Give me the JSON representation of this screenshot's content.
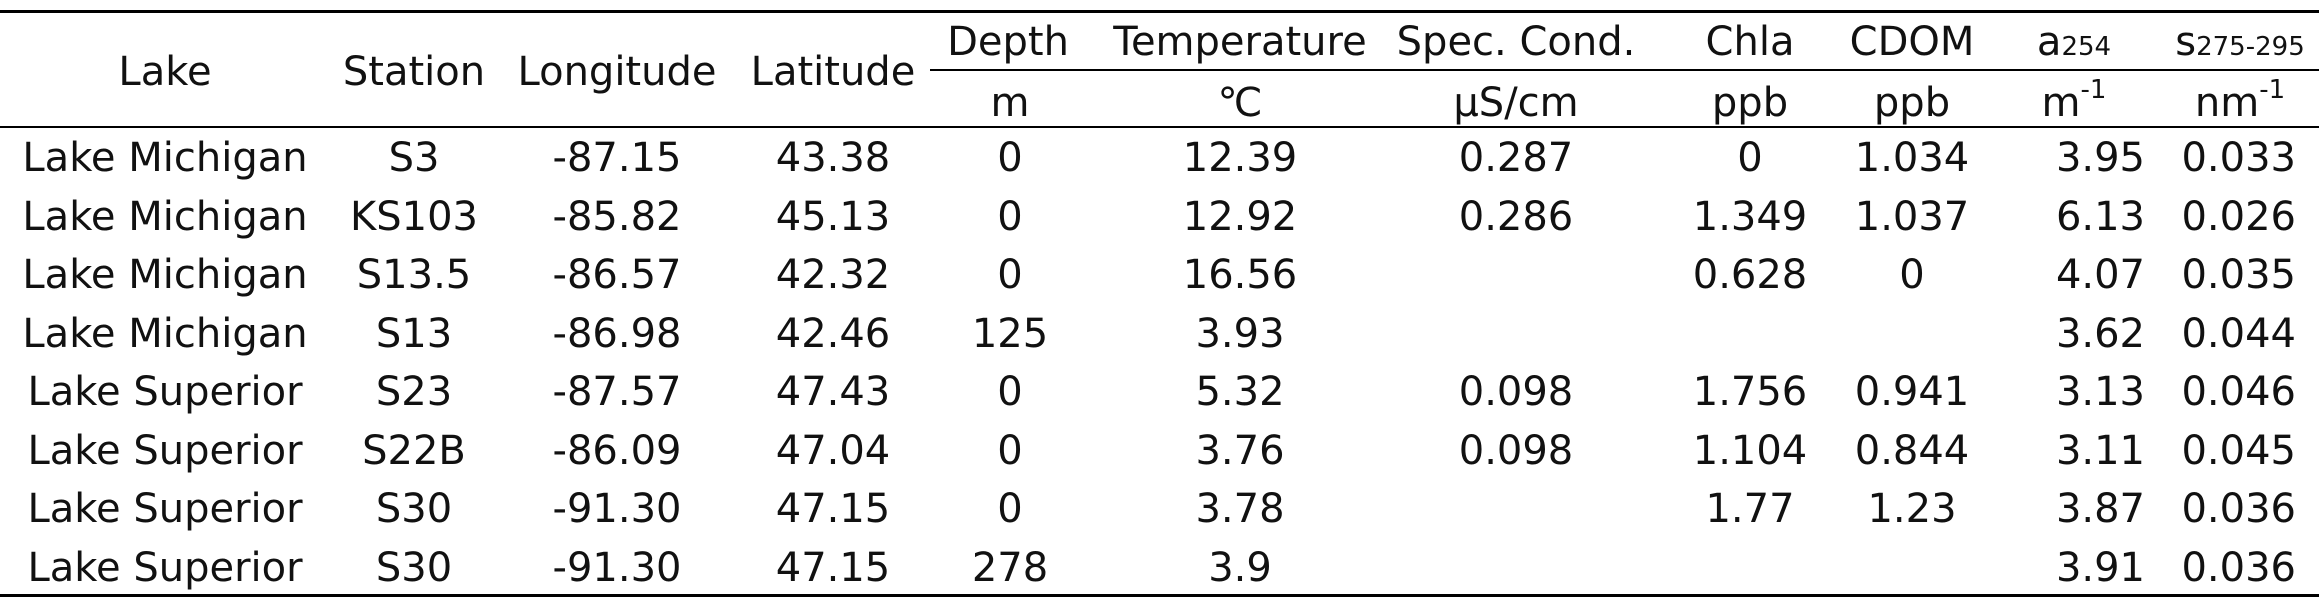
{
  "columns": [
    {
      "key": "lake",
      "label": "Lake",
      "unit": ""
    },
    {
      "key": "station",
      "label": "Station",
      "unit": ""
    },
    {
      "key": "longitude",
      "label": "Longitude",
      "unit": ""
    },
    {
      "key": "latitude",
      "label": "Latitude",
      "unit": ""
    },
    {
      "key": "depth",
      "label": "Depth",
      "unit": "m"
    },
    {
      "key": "temperature",
      "label": "Temperature",
      "unit": "℃"
    },
    {
      "key": "spec_cond",
      "label": "Spec. Cond.",
      "unit": "μS/cm"
    },
    {
      "key": "chla",
      "label": "Chla",
      "unit": "ppb"
    },
    {
      "key": "cdom",
      "label": "CDOM",
      "unit": "ppb"
    },
    {
      "key": "a254",
      "label_main": "a",
      "label_sub": "254",
      "unit_main": "m",
      "unit_sup": "-1"
    },
    {
      "key": "s275",
      "label_main": "s",
      "label_sub": "275-295",
      "unit_main": "nm",
      "unit_sup": "-1"
    }
  ],
  "rows": [
    [
      "Lake Michigan",
      "S3",
      "-87.15",
      "43.38",
      "0",
      "12.39",
      "0.287",
      "0",
      "1.034",
      "3.95",
      "0.033"
    ],
    [
      "Lake Michigan",
      "KS103",
      "-85.82",
      "45.13",
      "0",
      "12.92",
      "0.286",
      "1.349",
      "1.037",
      "6.13",
      "0.026"
    ],
    [
      "Lake Michigan",
      "S13.5",
      "-86.57",
      "42.32",
      "0",
      "16.56",
      "",
      "0.628",
      "0",
      "4.07",
      "0.035"
    ],
    [
      "Lake Michigan",
      "S13",
      "-86.98",
      "42.46",
      "125",
      "3.93",
      "",
      "",
      "",
      "3.62",
      "0.044"
    ],
    [
      "Lake Superior",
      "S23",
      "-87.57",
      "47.43",
      "0",
      "5.32",
      "0.098",
      "1.756",
      "0.941",
      "3.13",
      "0.046"
    ],
    [
      "Lake Superior",
      "S22B",
      "-86.09",
      "47.04",
      "0",
      "3.76",
      "0.098",
      "1.104",
      "0.844",
      "3.11",
      "0.045"
    ],
    [
      "Lake Superior",
      "S30",
      "-91.30",
      "47.15",
      "0",
      "3.78",
      "",
      "1.77",
      "1.23",
      "3.87",
      "0.036"
    ],
    [
      "Lake Superior",
      "S30",
      "-91.30",
      "47.15",
      "278",
      "3.9",
      "",
      "",
      "",
      "3.91",
      "0.036"
    ]
  ]
}
